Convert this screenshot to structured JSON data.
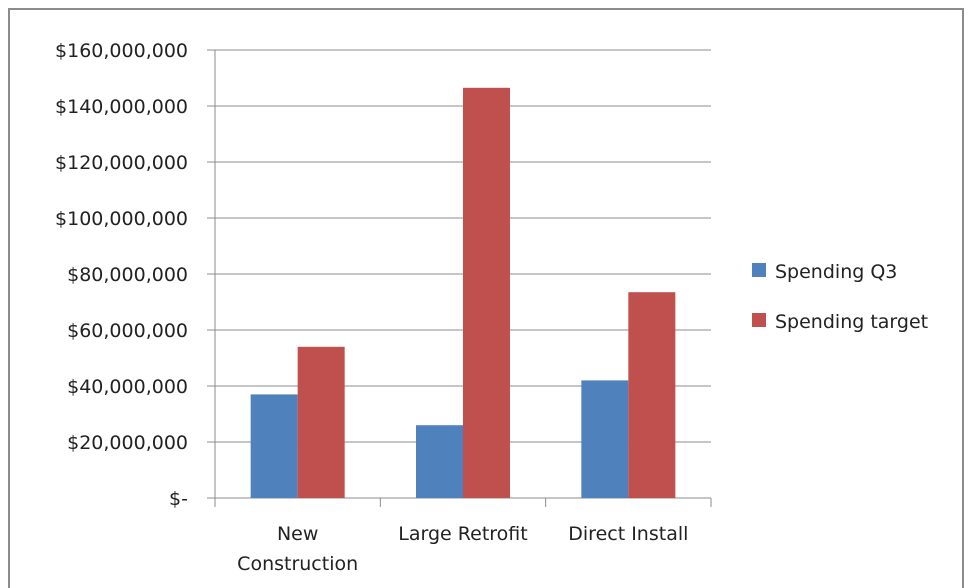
{
  "chart_data": {
    "type": "bar",
    "categories": [
      [
        "New",
        "Construction"
      ],
      [
        "Large Retrofit"
      ],
      [
        "Direct Install"
      ]
    ],
    "series": [
      {
        "name": "Spending Q3",
        "color": "#4f81bd",
        "values": [
          37000000,
          26000000,
          42000000
        ]
      },
      {
        "name": "Spending target",
        "color": "#c0504d",
        "values": [
          54000000,
          146500000,
          73500000
        ]
      }
    ],
    "y_ticks": [
      "$-",
      "$20,000,000",
      "$40,000,000",
      "$60,000,000",
      "$80,000,000",
      "$100,000,000",
      "$120,000,000",
      "$140,000,000",
      "$160,000,000"
    ],
    "ylim": [
      0,
      160000000
    ],
    "grid": true,
    "legend_position": "right"
  }
}
